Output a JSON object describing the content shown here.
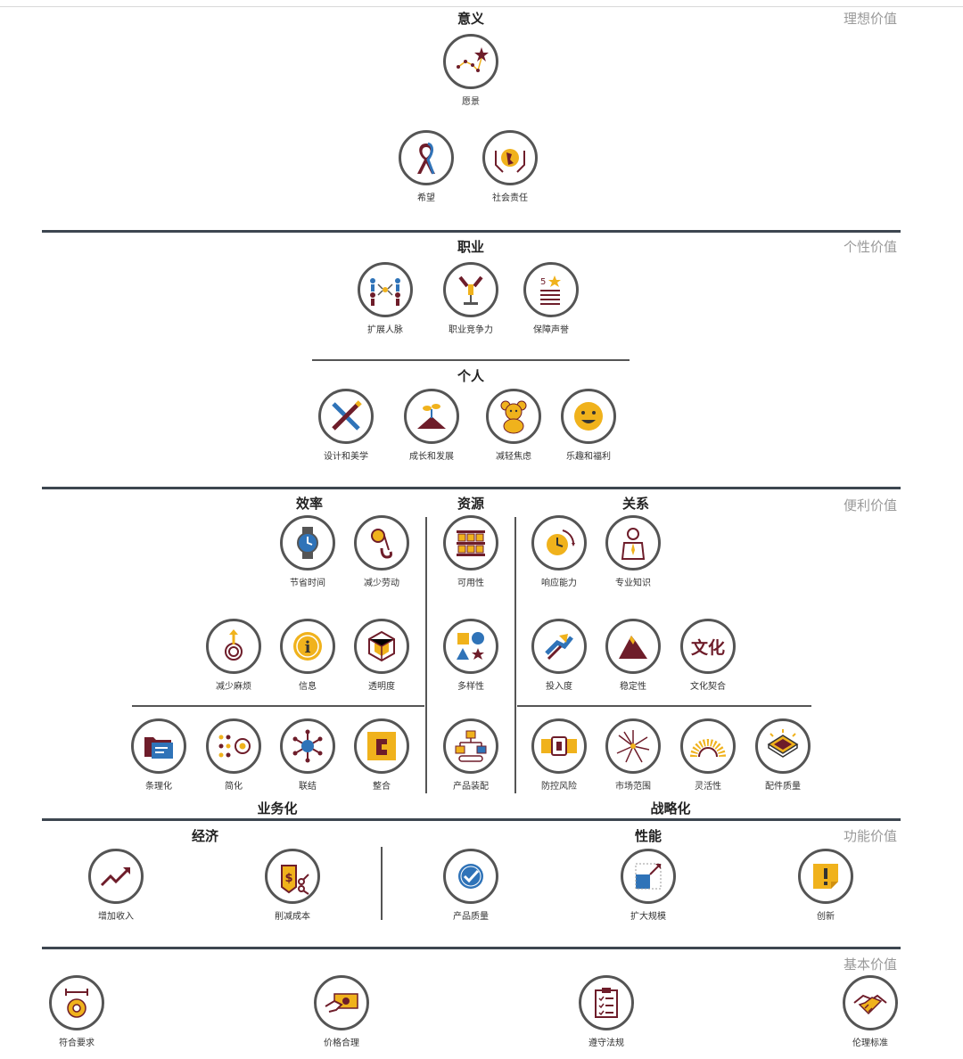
{
  "tiers": {
    "ideal": "理想价值",
    "personal": "个性价值",
    "convenience": "便利价值",
    "functional": "功能价值",
    "basic": "基本价值"
  },
  "groups": {
    "meaning": "意义",
    "career": "职业",
    "individual": "个人",
    "efficiency": "效率",
    "resources": "资源",
    "relations": "关系",
    "business": "业务化",
    "strategic": "战略化",
    "economy": "经济",
    "performance": "性能"
  },
  "elements": {
    "vision": "愿景",
    "hope": "希望",
    "social_responsibility": "社会责任",
    "network": "扩展人脉",
    "competitiveness": "职业竞争力",
    "reputation": "保障声誉",
    "design": "设计和美学",
    "growth": "成长和发展",
    "anxiety": "减轻焦虑",
    "fun": "乐趣和福利",
    "save_time": "节省时间",
    "reduce_effort": "减少劳动",
    "availability": "可用性",
    "responsiveness": "响应能力",
    "expertise": "专业知识",
    "reduce_hassle": "减少麻烦",
    "information": "信息",
    "transparency": "透明度",
    "variety": "多样性",
    "commitment": "投入度",
    "stability": "稳定性",
    "culture_fit": "文化契合",
    "organization": "条理化",
    "simplification": "简化",
    "connection": "联结",
    "integration": "整合",
    "configurability": "产品装配",
    "risk_reduction": "防控风险",
    "reach": "市场范围",
    "flexibility": "灵活性",
    "component_quality": "配件质量",
    "increase_revenue": "增加收入",
    "cost_reduction": "削减成本",
    "product_quality": "产品质量",
    "scalability": "扩大规模",
    "innovation": "创新",
    "meet_requirements": "符合要求",
    "acceptable_price": "价格合理",
    "compliance": "遵守法规",
    "ethical_standards": "伦理标准"
  },
  "icon_glyphs": {
    "culture_fit": "文化",
    "info": "i"
  },
  "colors": {
    "gold": "#f0b21c",
    "maroon": "#6e1d2a",
    "blue": "#2f73b8",
    "rule": "#3d4650",
    "tier_text": "#9a9a9a"
  }
}
